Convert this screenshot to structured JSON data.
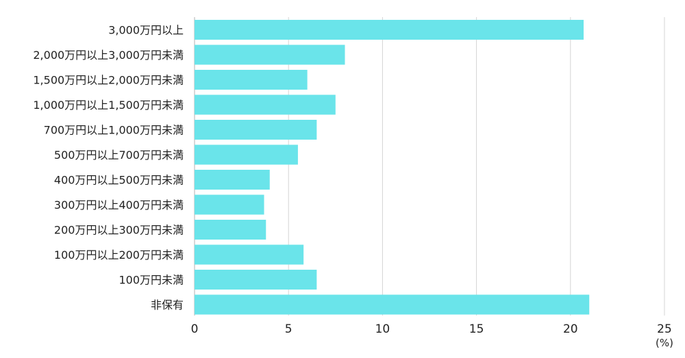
{
  "chart_data": {
    "type": "bar",
    "orientation": "horizontal",
    "categories": [
      "3,000万円以上",
      "2,000万円以上3,000万円未満",
      "1,500万円以上2,000万円未満",
      "1,000万円以上1,500万円未満",
      "700万円以上1,000万円未満",
      "500万円以上700万円未満",
      "400万円以上500万円未満",
      "300万円以上400万円未満",
      "200万円以上300万円未満",
      "100万円以上200万円未満",
      "100万円未満",
      "非保有"
    ],
    "values": [
      20.7,
      8.0,
      6.0,
      7.5,
      6.5,
      5.5,
      4.0,
      3.7,
      3.8,
      5.8,
      6.5,
      21.0
    ],
    "xlim": [
      0,
      25
    ],
    "x_ticks": [
      0,
      5,
      10,
      15,
      20,
      25
    ],
    "x_tick_labels": [
      "0",
      "5",
      "10",
      "15",
      "20",
      "25"
    ],
    "x_unit": "(%)",
    "grid": "vertical",
    "bar_color": "#6ae4ea",
    "legend": "none"
  }
}
